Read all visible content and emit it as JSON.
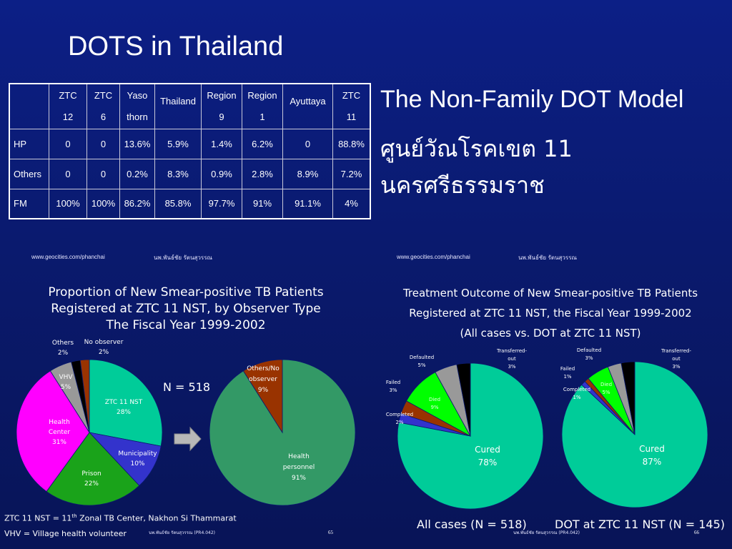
{
  "slide": {
    "title": "DOTS in Thailand",
    "right_title": "The Non-Family DOT Model",
    "right_subtitle": "ศูนย์วัณโรคเขต 11 นครศรีธรรมราช"
  },
  "table": {
    "headers": [
      {
        "line1": "ZTC",
        "line2": "12"
      },
      {
        "line1": "ZTC",
        "line2": "6"
      },
      {
        "line1": "Yaso",
        "line2": "thorn"
      },
      {
        "line1": "Thailand",
        "line2": ""
      },
      {
        "line1": "Region",
        "line2": "9"
      },
      {
        "line1": "Region",
        "line2": "1"
      },
      {
        "line1": "Ayuttaya",
        "line2": ""
      },
      {
        "line1": "ZTC",
        "line2": "11"
      }
    ],
    "rows": [
      {
        "label": "HP",
        "cells": [
          "0",
          "0",
          "13.6%",
          "5.9%",
          "1.4%",
          "6.2%",
          "0",
          "88.8%"
        ]
      },
      {
        "label": "Others",
        "cells": [
          "0",
          "0",
          "0.2%",
          "8.3%",
          "0.9%",
          "2.8%",
          "8.9%",
          "7.2%"
        ]
      },
      {
        "label": "FM",
        "cells": [
          "100%",
          "100%",
          "86.2%",
          "85.8%",
          "97.7%",
          "91%",
          "91.1%",
          "4%"
        ]
      }
    ]
  },
  "left_slide": {
    "url": "www.geocities.com/phanchai",
    "author": "นพ.พันธ์ชัย รัตนสุวรรณ",
    "title_lines": [
      "Proportion of New Smear-positive TB Patients",
      "Registered at ZTC 11 NST, by Observer Type",
      "The Fiscal Year 1999-2002"
    ],
    "n_label": "N = 518",
    "footnote1_pre": "ZTC 11 NST = 11",
    "footnote1_sup": "th",
    "footnote1_post": " Zonal TB Center, Nakhon Si Thammarat",
    "footnote2": "VHV = Village health volunteer",
    "footer_small": "นพ.พันธ์ชัย รัตนสุวรรณ (PR4.042)",
    "page_number": "65"
  },
  "right_slide": {
    "url": "www.geocities.com/phanchai",
    "author": "นพ.พันธ์ชัย รัตนสุวรรณ",
    "title_lines": [
      "Treatment Outcome of New Smear-positive TB Patients",
      "Registered at ZTC 11 NST, the Fiscal Year 1999-2002",
      "(All cases vs. DOT at ZTC 11 NST)"
    ],
    "caption_all": "All cases (N = 518)",
    "caption_dot": "DOT at ZTC 11 NST (N = 145)",
    "footer_small": "นพ.พันธ์ชัย รัตนสุวรรณ (PR4.042)",
    "page_number": "66"
  },
  "colors": {
    "background": "#0a1a6e",
    "teal": "#00cc99",
    "blue": "#3333cc",
    "green": "#1aa31a",
    "magenta": "#ff00ff",
    "gray": "#999999",
    "black": "#000000",
    "rust": "#993300",
    "seagreen": "#339966",
    "lime": "#00ff00"
  },
  "chart_data": [
    {
      "type": "pie",
      "title": "Proportion of New Smear-positive TB Patients Registered at ZTC 11 NST, by Observer Type The Fiscal Year 1999-2002",
      "slices": [
        {
          "label": "ZTC 11 NST",
          "value": 28,
          "value_label": "28%",
          "color": "#00cc99"
        },
        {
          "label": "Municipality",
          "value": 10,
          "value_label": "10%",
          "color": "#3333cc"
        },
        {
          "label": "Prison",
          "value": 22,
          "value_label": "22%",
          "color": "#1aa31a"
        },
        {
          "label": "Health Center",
          "value": 31,
          "value_label": "31%",
          "color": "#ff00ff"
        },
        {
          "label": "VHV",
          "value": 5,
          "value_label": "5%",
          "color": "#999999"
        },
        {
          "label": "Others",
          "value": 2,
          "value_label": "2%",
          "color": "#000000"
        },
        {
          "label": "No observer",
          "value": 2,
          "value_label": "2%",
          "color": "#993300"
        }
      ]
    },
    {
      "type": "pie",
      "slices": [
        {
          "label": "Health personnel",
          "value": 91,
          "value_label": "91%",
          "color": "#339966"
        },
        {
          "label": "Others/No observer",
          "value": 9,
          "value_label": "9%",
          "color": "#993300"
        }
      ]
    },
    {
      "type": "pie",
      "title": "All cases (N = 518)",
      "slices": [
        {
          "label": "Cured",
          "value": 78,
          "value_label": "78%",
          "color": "#00cc99"
        },
        {
          "label": "Completed",
          "value": 2,
          "value_label": "2%",
          "color": "#3333cc"
        },
        {
          "label": "Failed",
          "value": 3,
          "value_label": "3%",
          "color": "#993300"
        },
        {
          "label": "Died",
          "value": 9,
          "value_label": "9%",
          "color": "#00ff00"
        },
        {
          "label": "Defaulted",
          "value": 5,
          "value_label": "5%",
          "color": "#999999"
        },
        {
          "label": "Transferred-out",
          "value": 3,
          "value_label": "3%",
          "color": "#000000"
        }
      ]
    },
    {
      "type": "pie",
      "title": "DOT at ZTC 11 NST (N = 145)",
      "slices": [
        {
          "label": "Cured",
          "value": 87,
          "value_label": "87%",
          "color": "#00cc99"
        },
        {
          "label": "Completed",
          "value": 1,
          "value_label": "1%",
          "color": "#3333cc"
        },
        {
          "label": "Failed",
          "value": 1,
          "value_label": "1%",
          "color": "#993300"
        },
        {
          "label": "Died",
          "value": 5,
          "value_label": "5%",
          "color": "#00ff00"
        },
        {
          "label": "Defaulted",
          "value": 3,
          "value_label": "3%",
          "color": "#999999"
        },
        {
          "label": "Transferred-out",
          "value": 3,
          "value_label": "3%",
          "color": "#000000"
        }
      ]
    }
  ]
}
